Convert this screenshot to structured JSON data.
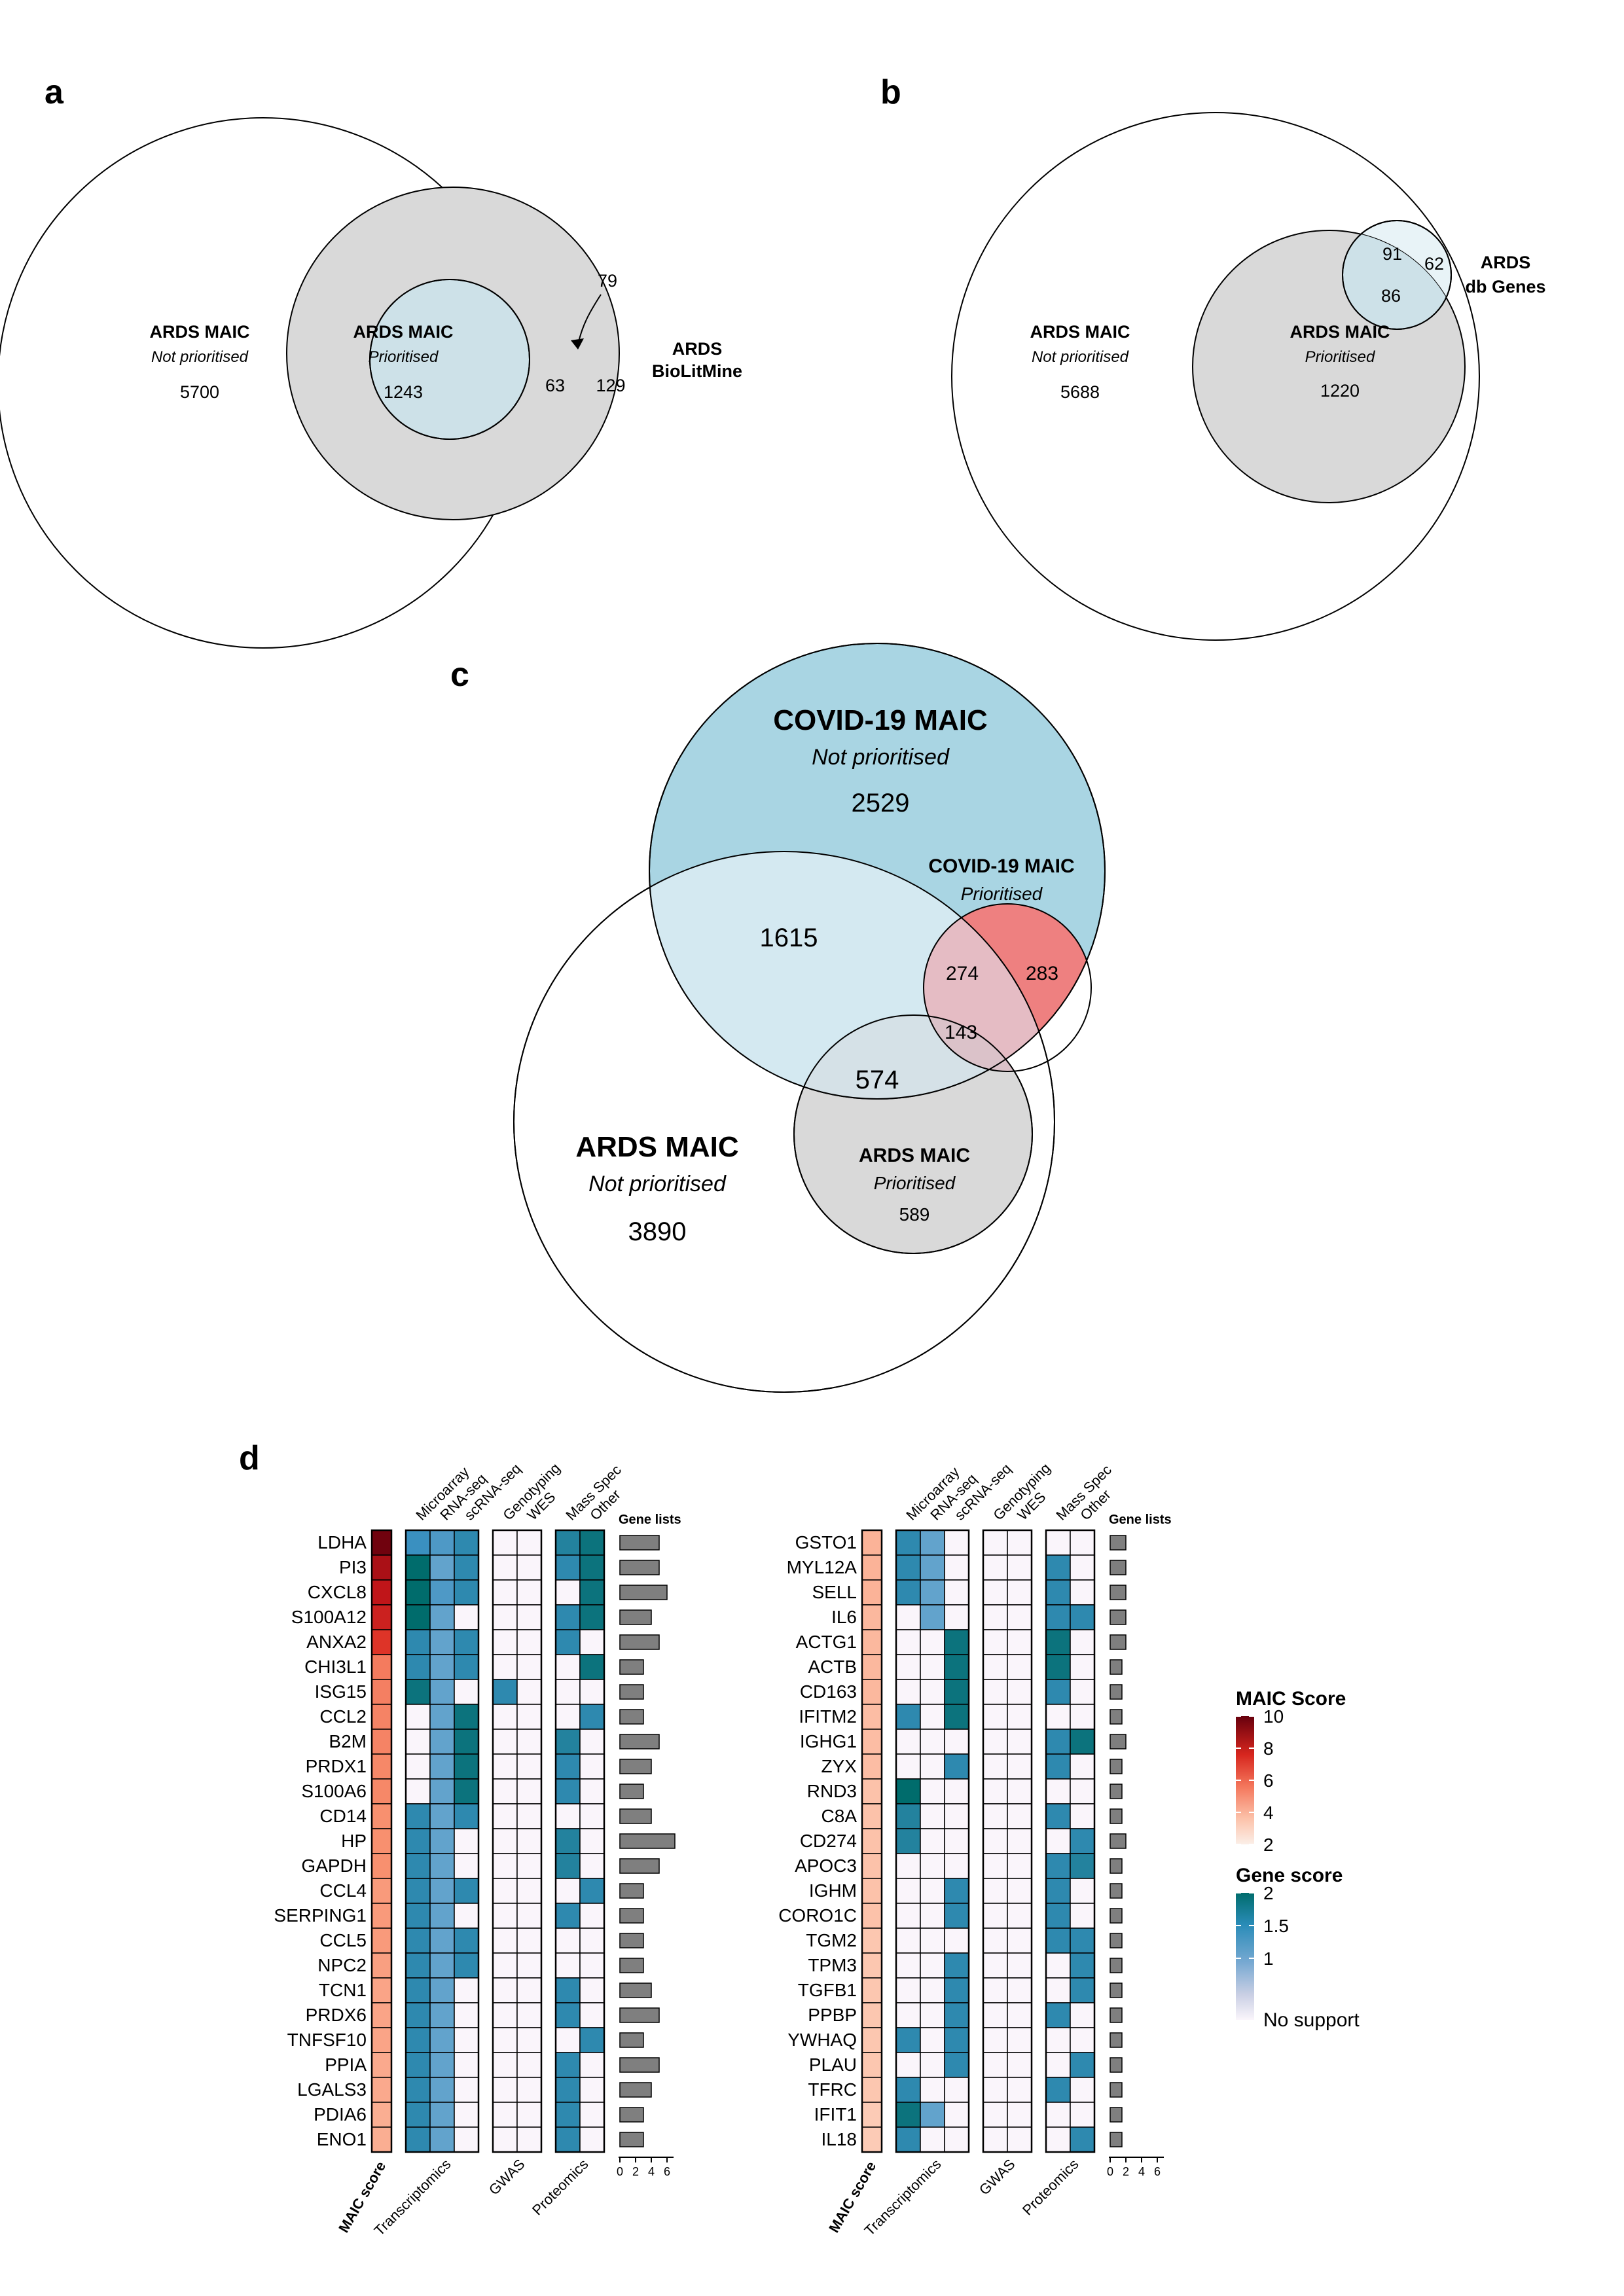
{
  "panels": {
    "a": {
      "label": "a",
      "maic_label": "ARDS MAIC",
      "not_prioritised": "Not prioritised",
      "prioritised": "Prioritised",
      "count_not_prioritised": "5700",
      "count_prioritised": "1243",
      "biolitmine_line1": "ARDS",
      "biolitmine_line2": "BioLitMine",
      "count_overlap": "63",
      "count_biolitmine_only": "129",
      "count_callout": "79"
    },
    "b": {
      "label": "b",
      "maic_label": "ARDS MAIC",
      "not_prioritised": "Not prioritised",
      "prioritised": "Prioritised",
      "count_not_prioritised": "5688",
      "count_prioritised": "1220",
      "dbgenes_line1": "ARDS",
      "dbgenes_line2": "db Genes",
      "count_db_not_prioritised": "91",
      "count_db_only": "62",
      "count_db_prioritised": "86"
    },
    "c": {
      "label": "c",
      "covid_label": "COVID-19 MAIC",
      "covid_not_prioritised": "Not prioritised",
      "count_covid_only": "2529",
      "covid_prior_label": "COVID-19 MAIC",
      "covid_prioritised": "Prioritised",
      "count_covid_ards_np": "1615",
      "count_covidp_ardsnp": "274",
      "count_covidp_only": "283",
      "count_all_three": "143",
      "count_covidnp_ardsp": "574",
      "ards_label": "ARDS MAIC",
      "ards_not_prioritised": "Not prioritised",
      "count_ards_only": "3890",
      "ards_prior_label": "ARDS MAIC",
      "ards_prioritised": "Prioritised",
      "count_ards_prioritised": "589"
    },
    "d": {
      "label": "d",
      "columns": [
        "Microarray",
        "RNA-seq",
        "scRNA-seq",
        "Genotyping",
        "WES",
        "Mass Spec",
        "Other"
      ],
      "gene_lists_label": "Gene lists",
      "maic_score_label": "MAIC score",
      "group_labels": [
        "Transcriptomics",
        "GWAS",
        "Proteomics"
      ],
      "bar_ticks": [
        "0",
        "2",
        "4",
        "6"
      ],
      "legend": {
        "maic_title": "MAIC Score",
        "maic_ticks": [
          "10",
          "8",
          "6",
          "4",
          "2"
        ],
        "gene_title": "Gene score",
        "gene_ticks": [
          "2",
          "1.5",
          "1"
        ],
        "no_support": "No support"
      },
      "colors": {
        "maic_low": "#fbefe8",
        "maic_high": "#67000d",
        "gene_none": "#faf5fb",
        "gene_1": "#9fbfdf",
        "gene_15": "#3a90c0",
        "gene_2": "#006c6c",
        "bar": "#7f7f7f"
      },
      "left": {
        "genes": [
          "LDHA",
          "PI3",
          "CXCL8",
          "S100A12",
          "ANXA2",
          "CHI3L1",
          "ISG15",
          "CCL2",
          "B2M",
          "PRDX1",
          "S100A6",
          "CD14",
          "HP",
          "GAPDH",
          "CCL4",
          "SERPING1",
          "CCL5",
          "NPC2",
          "TCN1",
          "PRDX6",
          "TNFSF10",
          "PPIA",
          "LGALS3",
          "PDIA6",
          "ENO1"
        ],
        "maic_scores": [
          9.8,
          8.5,
          8.0,
          7.4,
          6.4,
          4.5,
          4.4,
          4.3,
          4.3,
          4.2,
          4.2,
          4.0,
          4.0,
          4.0,
          3.8,
          3.8,
          3.8,
          3.7,
          3.6,
          3.6,
          3.6,
          3.5,
          3.5,
          3.4,
          3.4
        ],
        "scores": [
          [
            1.5,
            1.4,
            1.6,
            0,
            0,
            1.7,
            1.9
          ],
          [
            2.1,
            1.3,
            1.6,
            0,
            0,
            1.6,
            1.9
          ],
          [
            2.1,
            1.4,
            1.6,
            0,
            0,
            0,
            1.9
          ],
          [
            2.1,
            1.3,
            0,
            0,
            0,
            1.6,
            1.9
          ],
          [
            1.6,
            1.3,
            1.6,
            0,
            0,
            1.6,
            0
          ],
          [
            1.6,
            1.3,
            1.6,
            0,
            0,
            0,
            1.9
          ],
          [
            1.9,
            1.3,
            0,
            1.6,
            0,
            0,
            0
          ],
          [
            0,
            1.3,
            1.9,
            0,
            0,
            0,
            1.6
          ],
          [
            0,
            1.3,
            1.9,
            0,
            0,
            1.7,
            0
          ],
          [
            0,
            1.3,
            1.9,
            0,
            0,
            1.6,
            0
          ],
          [
            0,
            1.3,
            1.9,
            0,
            0,
            1.6,
            0
          ],
          [
            1.6,
            1.3,
            1.6,
            0,
            0,
            0,
            0
          ],
          [
            1.6,
            1.3,
            0,
            0,
            0,
            1.7,
            0
          ],
          [
            1.6,
            1.3,
            0,
            0,
            0,
            1.7,
            0
          ],
          [
            1.6,
            1.3,
            1.6,
            0,
            0,
            0,
            1.6
          ],
          [
            1.6,
            1.3,
            0,
            0,
            0,
            1.6,
            0
          ],
          [
            1.6,
            1.3,
            1.6,
            0,
            0,
            0,
            0
          ],
          [
            1.6,
            1.3,
            1.6,
            0,
            0,
            0,
            0
          ],
          [
            1.6,
            1.3,
            0,
            0,
            0,
            1.6,
            0
          ],
          [
            1.6,
            1.3,
            0,
            0,
            0,
            1.6,
            0
          ],
          [
            1.6,
            1.3,
            0,
            0,
            0,
            0,
            1.6
          ],
          [
            1.6,
            1.3,
            0,
            0,
            0,
            1.6,
            0
          ],
          [
            1.6,
            1.3,
            0,
            0,
            0,
            1.6,
            0
          ],
          [
            1.6,
            1.3,
            0,
            0,
            0,
            1.6,
            0
          ],
          [
            1.6,
            1.3,
            0,
            0,
            0,
            1.6,
            0
          ]
        ],
        "gene_lists": [
          5.0,
          5.0,
          6.0,
          4.0,
          5.0,
          3.0,
          3.0,
          3.0,
          5.0,
          4.0,
          3.0,
          4.0,
          7.0,
          5.0,
          3.0,
          3.0,
          3.0,
          3.0,
          4.0,
          5.0,
          3.0,
          5.0,
          4.0,
          3.0,
          3.0
        ]
      },
      "right": {
        "genes": [
          "GSTO1",
          "MYL12A",
          "SELL",
          "IL6",
          "ACTG1",
          "ACTB",
          "CD163",
          "IFITM2",
          "IGHG1",
          "ZYX",
          "RND3",
          "C8A",
          "CD274",
          "APOC3",
          "IGHM",
          "CORO1C",
          "TGM2",
          "TPM3",
          "TGFB1",
          "PPBP",
          "YWHAQ",
          "PLAU",
          "TFRC",
          "IFIT1",
          "IL18"
        ],
        "maic_scores": [
          3.3,
          3.3,
          3.3,
          3.2,
          3.2,
          3.2,
          3.2,
          3.1,
          3.1,
          3.1,
          3.0,
          3.0,
          3.0,
          3.0,
          3.0,
          3.0,
          2.9,
          2.9,
          2.9,
          2.9,
          2.9,
          2.9,
          2.9,
          2.8,
          2.8
        ],
        "scores": [
          [
            1.6,
            1.3,
            0,
            0,
            0,
            0,
            0
          ],
          [
            1.6,
            1.3,
            0,
            0,
            0,
            1.6,
            0
          ],
          [
            1.6,
            1.3,
            0,
            0,
            0,
            1.6,
            0
          ],
          [
            0,
            1.3,
            0,
            0,
            0,
            1.6,
            1.6
          ],
          [
            0,
            0,
            1.9,
            0,
            0,
            1.9,
            0
          ],
          [
            0,
            0,
            1.9,
            0,
            0,
            1.9,
            0
          ],
          [
            0,
            0,
            1.9,
            0,
            0,
            1.6,
            0
          ],
          [
            1.6,
            0,
            1.9,
            0,
            0,
            0,
            0
          ],
          [
            0,
            0,
            0,
            0,
            0,
            1.6,
            1.9
          ],
          [
            0,
            0,
            1.6,
            0,
            0,
            1.6,
            0
          ],
          [
            2.0,
            0,
            0,
            0,
            0,
            0,
            0
          ],
          [
            1.7,
            0,
            0,
            0,
            0,
            1.6,
            0
          ],
          [
            1.7,
            0,
            0,
            0,
            0,
            0,
            1.6
          ],
          [
            0,
            0,
            0,
            0,
            0,
            1.6,
            1.7
          ],
          [
            0,
            0,
            1.6,
            0,
            0,
            1.6,
            0
          ],
          [
            0,
            0,
            1.6,
            0,
            0,
            1.6,
            0
          ],
          [
            0,
            0,
            0,
            0,
            0,
            1.6,
            1.6
          ],
          [
            0,
            0,
            1.6,
            0,
            0,
            0,
            1.6
          ],
          [
            0,
            0,
            1.6,
            0,
            0,
            0,
            1.6
          ],
          [
            0,
            0,
            1.6,
            0,
            0,
            1.6,
            0
          ],
          [
            1.6,
            0,
            1.6,
            0,
            0,
            0,
            0
          ],
          [
            0,
            0,
            1.6,
            0,
            0,
            0,
            1.6
          ],
          [
            1.6,
            0,
            0,
            0,
            0,
            1.6,
            0
          ],
          [
            1.9,
            1.3,
            0,
            0,
            0,
            0,
            0
          ],
          [
            1.6,
            0,
            0,
            0,
            0,
            0,
            1.6
          ]
        ],
        "gene_lists": [
          2.0,
          2.0,
          2.0,
          2.0,
          2.0,
          1.5,
          1.5,
          1.5,
          2.0,
          1.5,
          1.5,
          1.5,
          2.0,
          1.5,
          1.5,
          1.5,
          1.5,
          1.5,
          1.5,
          1.5,
          1.5,
          1.5,
          1.5,
          1.5,
          1.5
        ]
      }
    }
  }
}
